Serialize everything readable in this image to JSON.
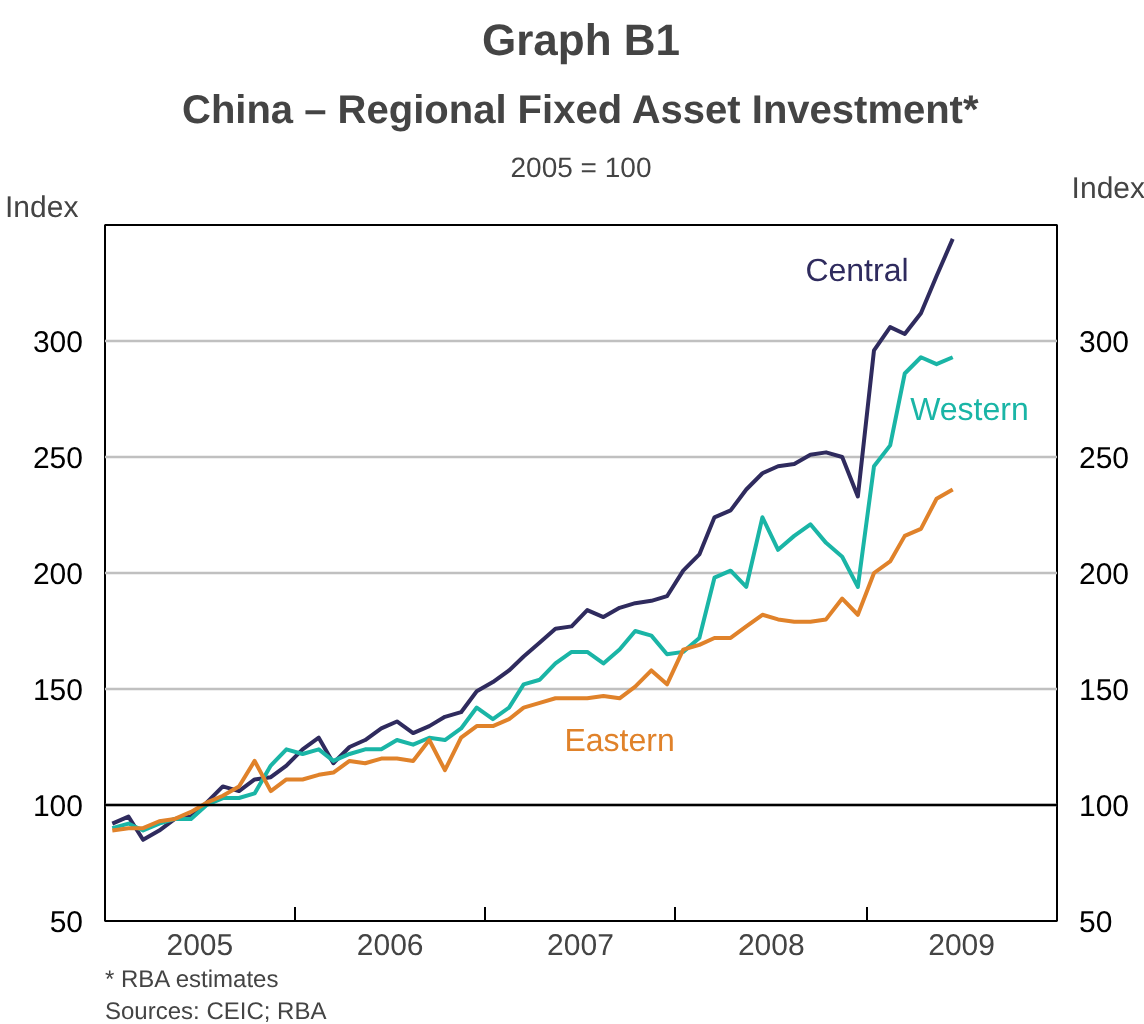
{
  "chart_data": {
    "type": "line",
    "title": "Graph B1",
    "subtitle": "China – Regional Fixed Asset Investment*",
    "ylabel": "Index",
    "y2label": "Index",
    "x": [
      "2005-01-15",
      "2005-02-15",
      "2005-03-15",
      "2005-04-15",
      "2005-05-15",
      "2005-06-15",
      "2005-07-15",
      "2005-08-15",
      "2005-09-15",
      "2005-10-15",
      "2005-11-15",
      "2005-12-15",
      "2006-01-15",
      "2006-02-15",
      "2006-03-15",
      "2006-04-15",
      "2006-05-15",
      "2006-06-15",
      "2006-07-15",
      "2006-08-15",
      "2006-09-15",
      "2006-10-15",
      "2006-11-15",
      "2006-12-15",
      "2007-01-15",
      "2007-02-15",
      "2007-03-15",
      "2007-04-15",
      "2007-05-15",
      "2007-06-15",
      "2007-07-15",
      "2007-08-15",
      "2007-09-15",
      "2007-10-15",
      "2007-11-15",
      "2007-12-15",
      "2008-01-15",
      "2008-02-15",
      "2008-03-15",
      "2008-04-15",
      "2008-05-15",
      "2008-06-15",
      "2008-07-15",
      "2008-08-15",
      "2008-09-15",
      "2008-10-15",
      "2008-11-15",
      "2008-12-15",
      "2009-01-15",
      "2009-02-15",
      "2009-03-15",
      "2009-04-15",
      "2009-05-15",
      "2009-06-15"
    ],
    "series": [
      {
        "name": "Central",
        "color": "#2f2b5e",
        "values": [
          92,
          95,
          85,
          89,
          94,
          95,
          101,
          108,
          106,
          111,
          112,
          117,
          124,
          129,
          118,
          125,
          128,
          133,
          136,
          131,
          134,
          138,
          140,
          149,
          153,
          158,
          164,
          170,
          176,
          177,
          184,
          181,
          185,
          187,
          188,
          190,
          201,
          208,
          224,
          227,
          236,
          243,
          246,
          247,
          251,
          252,
          250,
          233,
          296,
          306,
          303,
          312,
          328,
          344
        ]
      },
      {
        "name": "Western",
        "color": "#1ab5a6",
        "values": [
          90,
          92,
          89,
          92,
          94,
          94,
          100,
          103,
          103,
          105,
          117,
          124,
          122,
          124,
          119,
          122,
          124,
          124,
          128,
          126,
          129,
          128,
          133,
          142,
          137,
          142,
          152,
          154,
          161,
          166,
          166,
          161,
          167,
          175,
          173,
          165,
          166,
          172,
          198,
          201,
          194,
          224,
          210,
          216,
          221,
          213,
          207,
          194,
          246,
          255,
          286,
          293,
          290,
          293
        ]
      },
      {
        "name": "Eastern",
        "color": "#e0822a",
        "values": [
          89,
          90,
          90,
          93,
          94,
          97,
          101,
          104,
          108,
          119,
          106,
          111,
          111,
          113,
          114,
          119,
          118,
          120,
          120,
          119,
          128,
          115,
          129,
          134,
          134,
          137,
          142,
          144,
          146,
          146,
          146,
          147,
          146,
          151,
          158,
          152,
          167,
          169,
          172,
          172,
          177,
          182,
          180,
          179,
          179,
          180,
          189,
          182,
          200,
          205,
          216,
          219,
          232,
          236
        ]
      }
    ],
    "xlim": [
      "2005-01-01",
      "2010-01-01"
    ],
    "xticks": [
      {
        "value": "2005-07-02",
        "label": "2005"
      },
      {
        "value": "2006-01-01",
        "label": null
      },
      {
        "value": "2006-07-02",
        "label": "2006"
      },
      {
        "value": "2007-01-01",
        "label": null
      },
      {
        "value": "2007-07-02",
        "label": "2007"
      },
      {
        "value": "2008-01-01",
        "label": null
      },
      {
        "value": "2008-07-02",
        "label": "2008"
      },
      {
        "value": "2009-01-01",
        "label": null
      },
      {
        "value": "2009-07-02",
        "label": "2009"
      }
    ],
    "ylim": [
      50,
      350
    ],
    "yticks": [
      50,
      100,
      150,
      200,
      250,
      300
    ],
    "y2lim": [
      50,
      350
    ],
    "y2ticks": [
      50,
      100,
      150,
      200,
      250,
      300
    ],
    "ref_lines": [
      {
        "axis": "y",
        "value": 100,
        "label": null,
        "color": "#000000"
      }
    ],
    "grid": "y",
    "line_style": "solid",
    "annotations": [
      "2005 = 100",
      "*    RBA estimates",
      "Sources: CEIC; RBA"
    ]
  }
}
